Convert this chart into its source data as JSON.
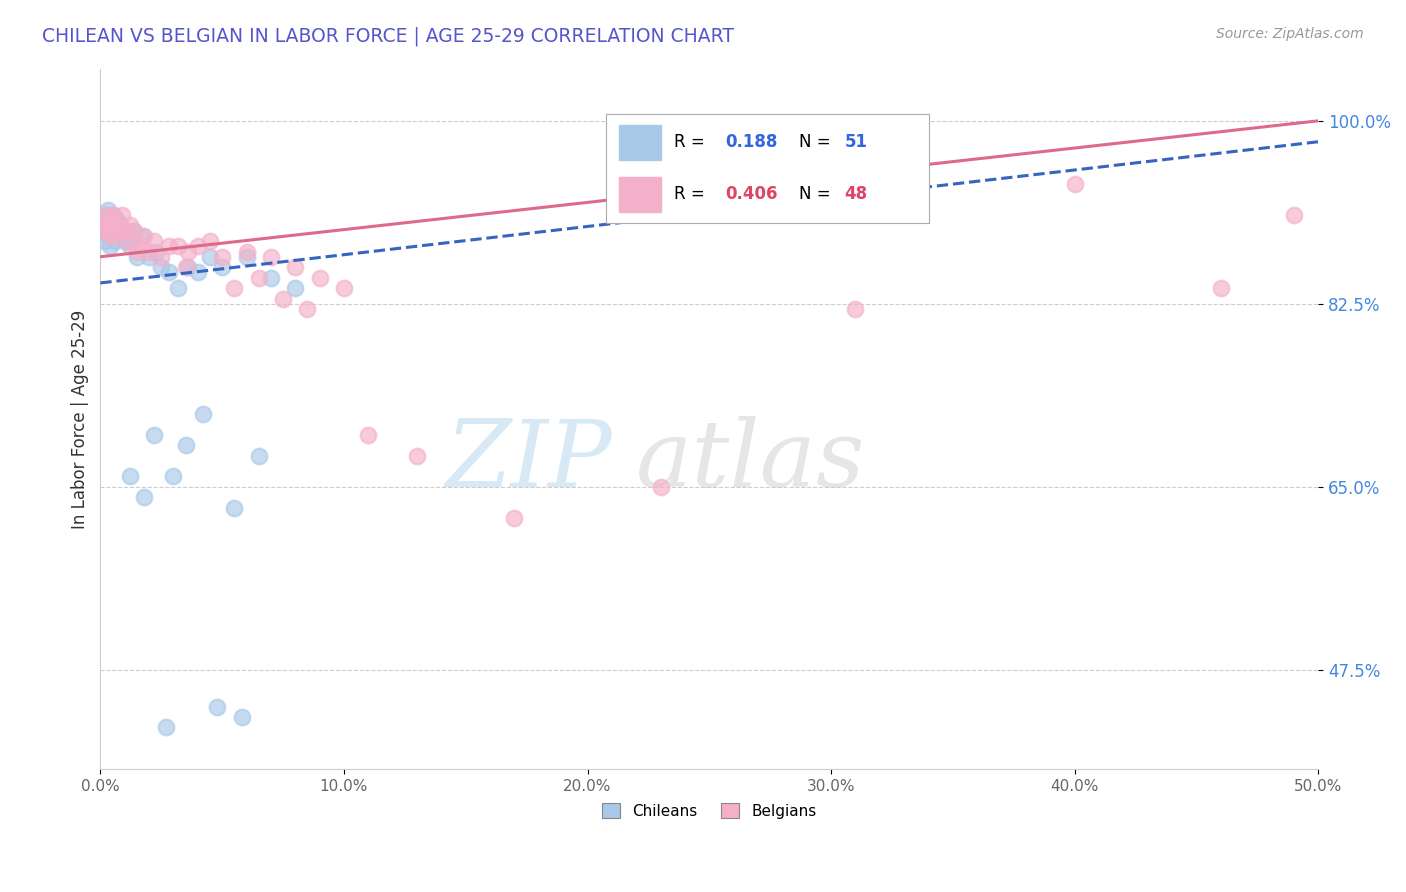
{
  "title": "CHILEAN VS BELGIAN IN LABOR FORCE | AGE 25-29 CORRELATION CHART",
  "source_text": "Source: ZipAtlas.com",
  "ylabel": "In Labor Force | Age 25-29",
  "xlim": [
    0.0,
    0.5
  ],
  "ylim": [
    0.38,
    1.05
  ],
  "xticks": [
    0.0,
    0.1,
    0.2,
    0.3,
    0.4,
    0.5
  ],
  "xticklabels": [
    "0.0%",
    "10.0%",
    "20.0%",
    "30.0%",
    "40.0%",
    "50.0%"
  ],
  "yticks": [
    0.475,
    0.65,
    0.825,
    1.0
  ],
  "yticklabels": [
    "47.5%",
    "65.0%",
    "82.5%",
    "100.0%"
  ],
  "chilean_color": "#a8c8e8",
  "belgian_color": "#f4b0c8",
  "chilean_line_color": "#3565c0",
  "belgian_line_color": "#e06888",
  "R_chilean": 0.188,
  "N_chilean": 51,
  "R_belgian": 0.406,
  "N_belgian": 48,
  "watermark1": "ZIP",
  "watermark2": "atlas",
  "background_color": "#ffffff",
  "title_color": "#5555cc",
  "source_color": "#999999",
  "ylabel_color": "#333333",
  "ytick_color": "#4488dd",
  "xtick_color": "#666666",
  "grid_color": "#cccccc",
  "chilean_x": [
    0.001,
    0.001,
    0.002,
    0.002,
    0.002,
    0.003,
    0.003,
    0.003,
    0.004,
    0.004,
    0.004,
    0.005,
    0.005,
    0.005,
    0.006,
    0.006,
    0.006,
    0.007,
    0.007,
    0.008,
    0.008,
    0.009,
    0.01,
    0.011,
    0.012,
    0.014,
    0.015,
    0.017,
    0.02,
    0.023,
    0.025,
    0.028,
    0.032,
    0.036,
    0.04,
    0.045,
    0.05,
    0.06,
    0.07,
    0.08,
    0.03,
    0.035,
    0.042,
    0.055,
    0.065,
    0.012,
    0.018,
    0.022,
    0.027,
    0.048,
    0.058
  ],
  "chilean_y": [
    0.895,
    0.9,
    0.91,
    0.885,
    0.905,
    0.89,
    0.895,
    0.915,
    0.9,
    0.895,
    0.88,
    0.905,
    0.895,
    0.91,
    0.89,
    0.885,
    0.9,
    0.895,
    0.905,
    0.89,
    0.9,
    0.895,
    0.885,
    0.895,
    0.88,
    0.895,
    0.87,
    0.89,
    0.87,
    0.875,
    0.86,
    0.855,
    0.84,
    0.86,
    0.855,
    0.87,
    0.86,
    0.87,
    0.85,
    0.84,
    0.66,
    0.69,
    0.72,
    0.63,
    0.68,
    0.66,
    0.64,
    0.7,
    0.42,
    0.44,
    0.43
  ],
  "belgian_x": [
    0.001,
    0.002,
    0.002,
    0.003,
    0.003,
    0.004,
    0.004,
    0.005,
    0.005,
    0.006,
    0.006,
    0.007,
    0.008,
    0.009,
    0.01,
    0.011,
    0.012,
    0.014,
    0.016,
    0.018,
    0.02,
    0.022,
    0.025,
    0.028,
    0.032,
    0.036,
    0.04,
    0.045,
    0.05,
    0.06,
    0.07,
    0.08,
    0.09,
    0.1,
    0.015,
    0.035,
    0.055,
    0.065,
    0.075,
    0.085,
    0.11,
    0.13,
    0.17,
    0.23,
    0.31,
    0.4,
    0.46,
    0.49
  ],
  "belgian_y": [
    0.905,
    0.895,
    0.91,
    0.9,
    0.895,
    0.905,
    0.89,
    0.91,
    0.895,
    0.905,
    0.89,
    0.9,
    0.895,
    0.91,
    0.895,
    0.885,
    0.9,
    0.895,
    0.88,
    0.89,
    0.875,
    0.885,
    0.87,
    0.88,
    0.88,
    0.875,
    0.88,
    0.885,
    0.87,
    0.875,
    0.87,
    0.86,
    0.85,
    0.84,
    0.875,
    0.86,
    0.84,
    0.85,
    0.83,
    0.82,
    0.7,
    0.68,
    0.62,
    0.65,
    0.82,
    0.94,
    0.84,
    0.91
  ]
}
